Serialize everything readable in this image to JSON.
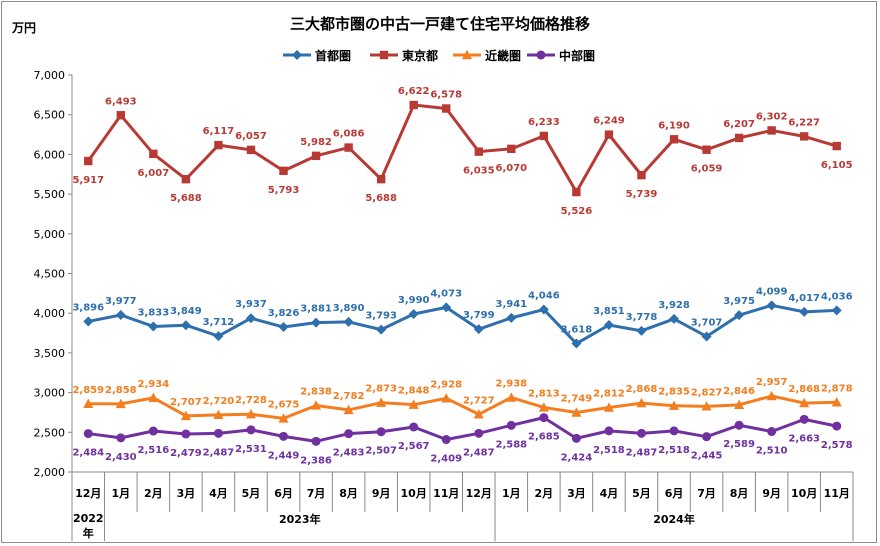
{
  "chart_data": {
    "type": "line",
    "title": "三大都市圏の中古一戸建て住宅平均価格推移",
    "ylabel": "万円",
    "ylim": [
      2000,
      7000
    ],
    "yticks": [
      2000,
      2500,
      3000,
      3500,
      4000,
      4500,
      5000,
      5500,
      6000,
      6500,
      7000
    ],
    "ytick_labels": [
      "2,000",
      "2,500",
      "3,000",
      "3,500",
      "4,000",
      "4,500",
      "5,000",
      "5,500",
      "6,000",
      "6,500",
      "7,000"
    ],
    "grid": false,
    "legend_position": "top",
    "categories": [
      "12月",
      "1月",
      "2月",
      "3月",
      "4月",
      "5月",
      "6月",
      "7月",
      "8月",
      "9月",
      "10月",
      "11月",
      "12月",
      "1月",
      "2月",
      "3月",
      "4月",
      "5月",
      "6月",
      "7月",
      "8月",
      "9月",
      "10月",
      "11月"
    ],
    "year_groups": [
      {
        "label": "2022\n年",
        "span": 1
      },
      {
        "label": "2023年",
        "span": 12
      },
      {
        "label": "2024年",
        "span": 11
      }
    ],
    "series": [
      {
        "name": "首都圏",
        "color": "#2e6fad",
        "marker": "diamond",
        "label_pos": "above",
        "values": [
          3896,
          3977,
          3833,
          3849,
          3712,
          3937,
          3826,
          3881,
          3890,
          3793,
          3990,
          4073,
          3799,
          3941,
          4046,
          3618,
          3851,
          3778,
          3928,
          3707,
          3975,
          4099,
          4017,
          4036
        ],
        "labels": [
          "3,896",
          "3,977",
          "3,833",
          "3,849",
          "3,712",
          "3,937",
          "3,826",
          "3,881",
          "3,890",
          "3,793",
          "3,990",
          "4,073",
          "3,799",
          "3,941",
          "4,046",
          "3,618",
          "3,851",
          "3,778",
          "3,928",
          "3,707",
          "3,975",
          "4,099",
          "4,017",
          "4,036"
        ]
      },
      {
        "name": "東京都",
        "color": "#b83a35",
        "marker": "square",
        "label_pos": "alternate",
        "values": [
          5917,
          6493,
          6007,
          5688,
          6117,
          6057,
          5793,
          5982,
          6086,
          5688,
          6622,
          6578,
          6035,
          6070,
          6233,
          5526,
          6249,
          5739,
          6190,
          6059,
          6207,
          6302,
          6227,
          6105
        ],
        "labels": [
          "5,917",
          "6,493",
          "6,007",
          "5,688",
          "6,117",
          "6,057",
          "5,793",
          "5,982",
          "6,086",
          "5,688",
          "6,622",
          "6,578",
          "6,035",
          "6,070",
          "6,233",
          "5,526",
          "6,249",
          "5,739",
          "6,190",
          "6,059",
          "6,207",
          "6,302",
          "6,227",
          "6,105"
        ]
      },
      {
        "name": "近畿圏",
        "color": "#f47d1f",
        "marker": "triangle",
        "label_pos": "above",
        "values": [
          2859,
          2858,
          2934,
          2707,
          2720,
          2728,
          2675,
          2838,
          2782,
          2873,
          2848,
          2928,
          2727,
          2938,
          2813,
          2749,
          2812,
          2868,
          2835,
          2827,
          2846,
          2957,
          2868,
          2878
        ],
        "labels": [
          "2,859",
          "2,858",
          "2,934",
          "2,707",
          "2,720",
          "2,728",
          "2,675",
          "2,838",
          "2,782",
          "2,873",
          "2,848",
          "2,928",
          "2,727",
          "2,938",
          "2,813",
          "2,749",
          "2,812",
          "2,868",
          "2,835",
          "2,827",
          "2,846",
          "2,957",
          "2,868",
          "2,878"
        ]
      },
      {
        "name": "中部圏",
        "color": "#7030a0",
        "marker": "circle",
        "label_pos": "below",
        "values": [
          2484,
          2430,
          2516,
          2479,
          2487,
          2531,
          2449,
          2386,
          2483,
          2507,
          2567,
          2409,
          2487,
          2588,
          2685,
          2424,
          2518,
          2487,
          2518,
          2445,
          2589,
          2510,
          2663,
          2578
        ],
        "labels": [
          "2,484",
          "2,430",
          "2,516",
          "2,479",
          "2,487",
          "2,531",
          "2,449",
          "2,386",
          "2,483",
          "2,507",
          "2,567",
          "2,409",
          "2,487",
          "2,588",
          "2,685",
          "2,424",
          "2,518",
          "2,487",
          "2,518",
          "2,445",
          "2,589",
          "2,510",
          "2,663",
          "2,578"
        ]
      }
    ]
  }
}
